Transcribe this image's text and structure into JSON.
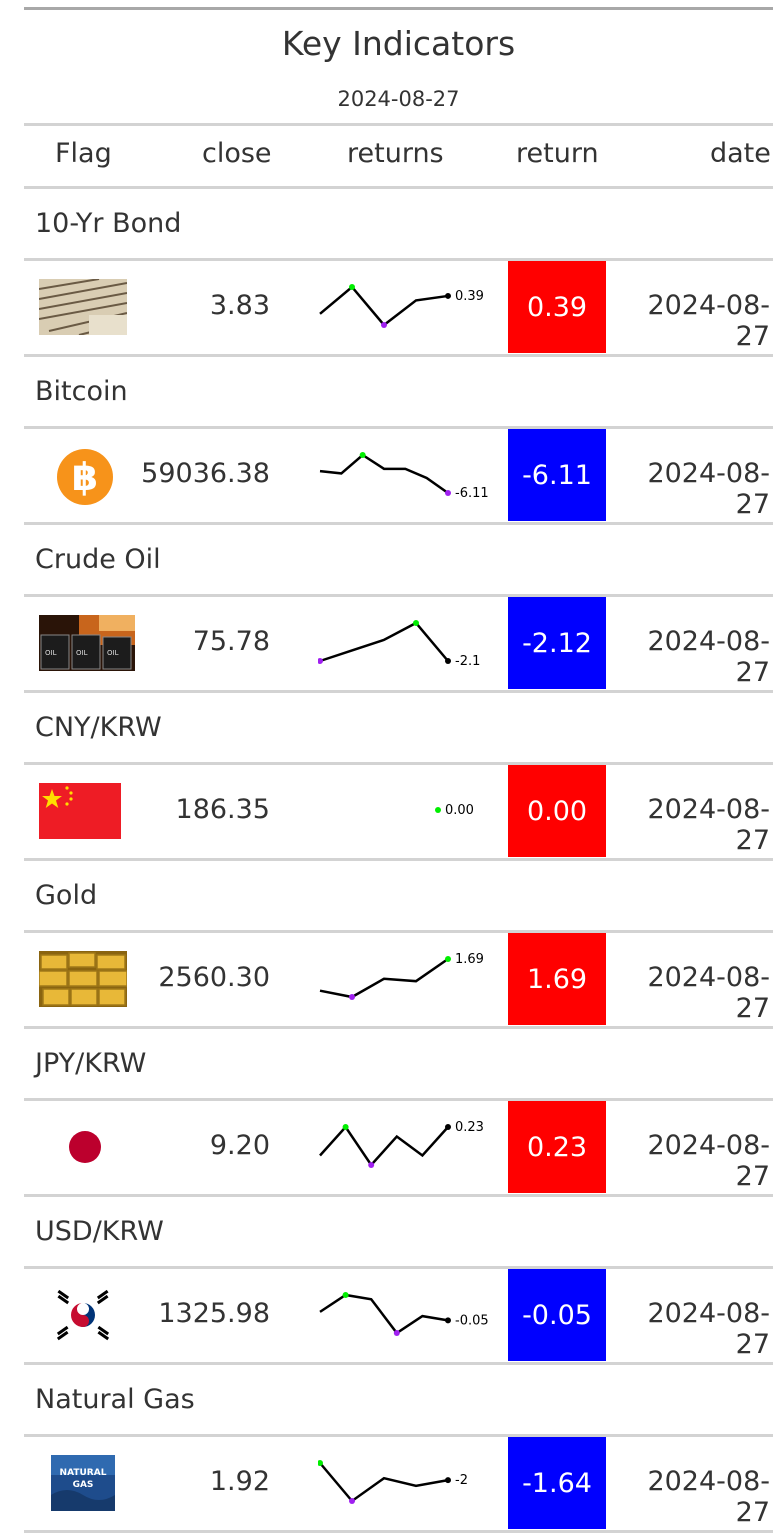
{
  "table": {
    "title": "Key Indicators",
    "subtitle": "2024-08-27",
    "columns": [
      "Flag",
      "close",
      "returns",
      "return",
      "date"
    ],
    "colors": {
      "positive": "#ff0000",
      "negative": "#0000ff",
      "spark_high": "#00ee00",
      "spark_low": "#a020f0"
    },
    "rows": [
      {
        "group": "10-Yr Bond",
        "flag_icon": "bond-certificates-icon",
        "close": "3.83",
        "spark": [
          3.7,
          3.82,
          3.65,
          3.76,
          3.78
        ],
        "spark_label": "0.39",
        "return": "0.39",
        "return_sign": "positive",
        "date": "2024-08-27"
      },
      {
        "group": "Bitcoin",
        "flag_icon": "bitcoin-icon",
        "close": "59036.38",
        "spark": [
          61.5,
          61.3,
          62.9,
          61.7,
          61.7,
          60.9,
          59.6
        ],
        "spark_label": "-6.11",
        "return": "-6.11",
        "return_sign": "negative",
        "date": "2024-08-27"
      },
      {
        "group": "Crude Oil",
        "flag_icon": "crude-oil-barrels-icon",
        "close": "75.78",
        "spark": [
          75.0,
          75.5,
          76.0,
          76.8,
          75.0
        ],
        "spark_label": "-2.1",
        "return": "-2.12",
        "return_sign": "negative",
        "date": "2024-08-27"
      },
      {
        "group": "CNY/KRW",
        "flag_icon": "china-flag-icon",
        "close": "186.35",
        "spark": [
          0.0
        ],
        "spark_label": "0.00",
        "return": "0.00",
        "return_sign": "positive",
        "date": "2024-08-27"
      },
      {
        "group": "Gold",
        "flag_icon": "gold-bars-icon",
        "close": "2560.30",
        "spark": [
          2520,
          2512,
          2535,
          2532,
          2560
        ],
        "spark_label": "1.69",
        "return": "1.69",
        "return_sign": "positive",
        "date": "2024-08-27"
      },
      {
        "group": "JPY/KRW",
        "flag_icon": "japan-flag-icon",
        "close": "9.20",
        "spark": [
          9.17,
          9.2,
          9.16,
          9.19,
          9.17,
          9.2
        ],
        "spark_label": "0.23",
        "return": "0.23",
        "return_sign": "positive",
        "date": "2024-08-27"
      },
      {
        "group": "USD/KRW",
        "flag_icon": "korea-flag-icon",
        "close": "1325.98",
        "spark": [
          1332,
          1336,
          1335,
          1327,
          1331,
          1330
        ],
        "spark_label": "-0.05",
        "return": "-0.05",
        "return_sign": "negative",
        "date": "2024-08-27"
      },
      {
        "group": "Natural Gas",
        "flag_icon": "natural-gas-icon",
        "close": "1.92",
        "spark": [
          2.05,
          1.85,
          1.97,
          1.93,
          1.96
        ],
        "spark_label": "-2",
        "return": "-1.64",
        "return_sign": "negative",
        "date": "2024-08-27"
      }
    ]
  }
}
